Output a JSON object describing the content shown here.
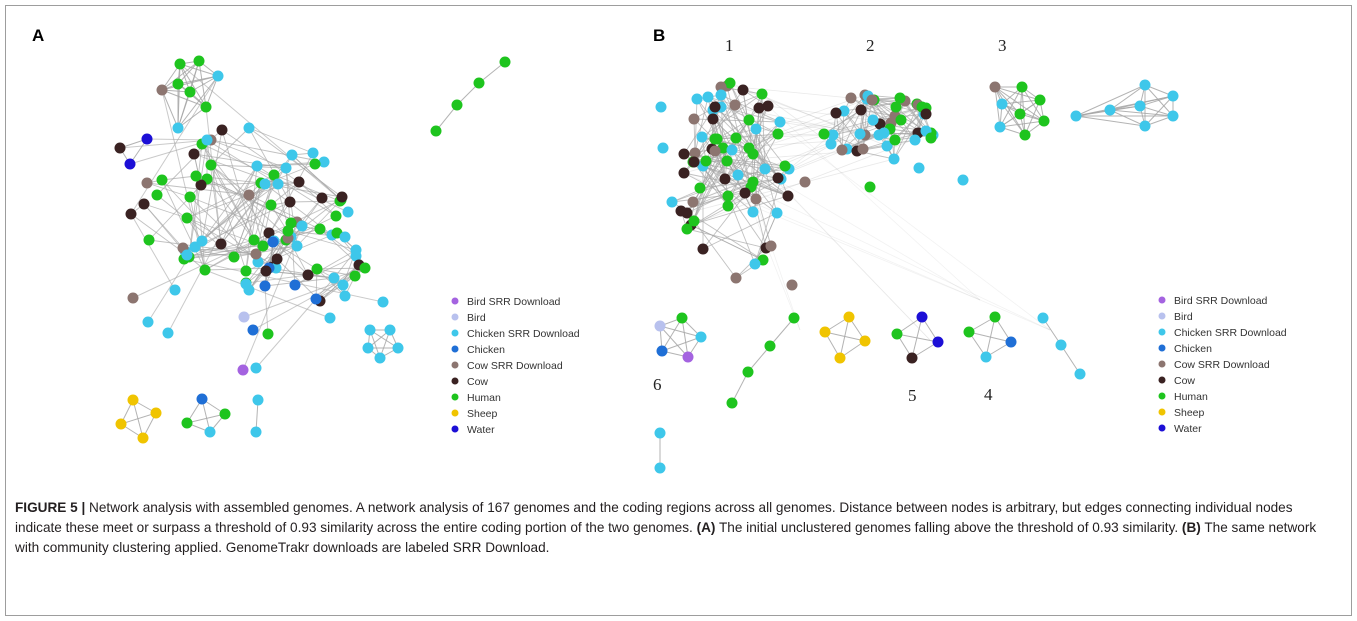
{
  "panels": {
    "a_letter": "A",
    "b_letter": "B",
    "cluster_numbers": [
      "1",
      "2",
      "3",
      "4",
      "5",
      "6"
    ]
  },
  "legend": [
    {
      "label": "Bird SRR Download",
      "color": "#a463e0",
      "key": "birdsrr"
    },
    {
      "label": "Bird",
      "color": "#b8c1ee",
      "key": "bird"
    },
    {
      "label": "Chicken SRR Download",
      "color": "#3ec7ea",
      "key": "chickensrr"
    },
    {
      "label": "Chicken",
      "color": "#1f6fd6",
      "key": "chicken"
    },
    {
      "label": "Cow SRR Download",
      "color": "#8c7570",
      "key": "cowsrr"
    },
    {
      "label": "Cow",
      "color": "#3a2222",
      "key": "cow"
    },
    {
      "label": "Human",
      "color": "#1ec41e",
      "key": "human"
    },
    {
      "label": "Sheep",
      "color": "#f0c400",
      "key": "sheep"
    },
    {
      "label": "Water",
      "color": "#1c0fd6",
      "key": "water"
    }
  ],
  "edge_color": "#a6a6a6",
  "caption": {
    "figure_label": "FIGURE 5 |",
    "intro": " Network analysis with assembled genomes. A network analysis of 167 genomes and the coding regions across all genomes. Distance between nodes is arbitrary, but edges connecting individual nodes indicate these meet or surpass a threshold of 0.93 similarity across the entire coding portion of the two genomes. ",
    "a_label": "(A)",
    "a_text": " The initial unclustered genomes falling above the threshold of 0.93 similarity. ",
    "b_label": "(B)",
    "b_text": " The same network with community clustering applied. GenomeTrakr downloads are labeled SRR Download."
  }
}
